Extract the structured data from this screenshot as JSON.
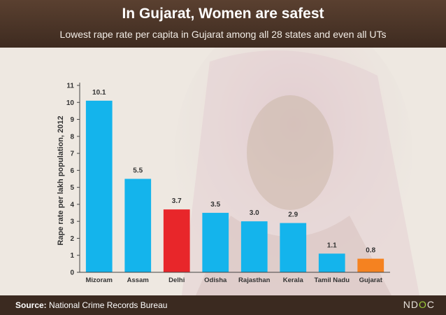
{
  "header": {
    "title": "In Gujarat, Women are safest",
    "subtitle": "Lowest rape rate per capita in Gujarat among all 28 states and even all UTs"
  },
  "footer": {
    "source_label": "Source:",
    "source_text": "National Crime Records Bureau",
    "logo_left": "N",
    "logo_mid": "D",
    "logo_o": "O",
    "logo_right": "C"
  },
  "colors": {
    "default_bar": "#14b4ec",
    "delhi_bar": "#e8262a",
    "gujarat_bar": "#f58220",
    "header_bg": "#4a3428",
    "footer_bg": "#3b2a20"
  },
  "chart_data": {
    "type": "bar",
    "title": "",
    "xlabel": "",
    "ylabel": "Rape rate per lakh population, 2012",
    "ylim": [
      0,
      11
    ],
    "yticks": [
      0,
      1,
      2,
      3,
      4,
      5,
      6,
      7,
      8,
      9,
      10,
      11
    ],
    "categories": [
      "Mizoram",
      "Assam",
      "Delhi",
      "Odisha",
      "Rajasthan",
      "Kerala",
      "Tamil Nadu",
      "Gujarat"
    ],
    "values": [
      10.1,
      5.5,
      3.7,
      3.5,
      3.0,
      2.9,
      1.1,
      0.8
    ],
    "data_labels": [
      "10.1",
      "5.5",
      "3.7",
      "3.5",
      "3.0",
      "2.9",
      "1.1",
      "0.8"
    ],
    "bar_colors": [
      "#14b4ec",
      "#14b4ec",
      "#e8262a",
      "#14b4ec",
      "#14b4ec",
      "#14b4ec",
      "#14b4ec",
      "#f58220"
    ],
    "grid": false,
    "legend": "none"
  }
}
